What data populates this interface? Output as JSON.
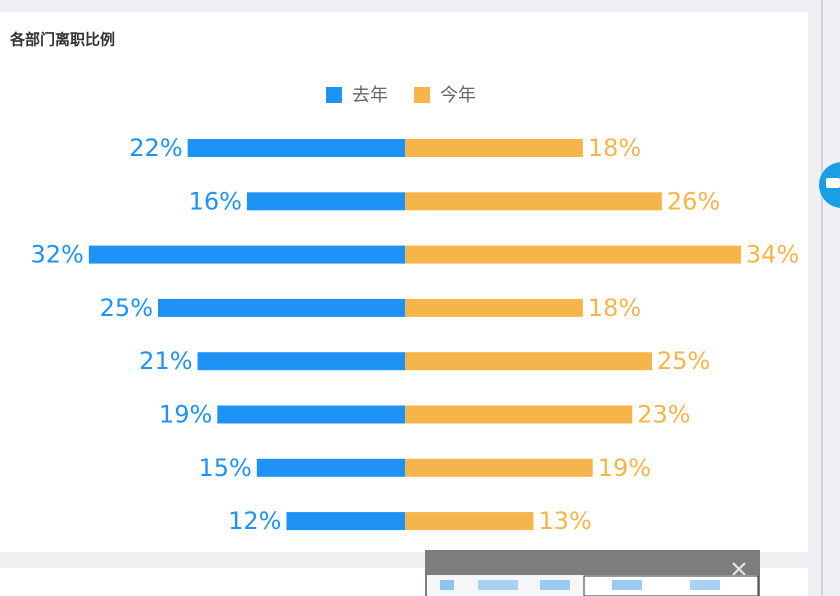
{
  "chart_data": {
    "type": "butterfly",
    "title": "各部门离职比例",
    "series": [
      {
        "name": "去年",
        "color": "#1e93f5",
        "values": [
          22,
          16,
          32,
          25,
          21,
          19,
          15,
          12
        ],
        "value_labels": [
          "22%",
          "16%",
          "32%",
          "25%",
          "21%",
          "19%",
          "15%",
          "12%"
        ]
      },
      {
        "name": "今年",
        "color": "#f5b54a",
        "values": [
          18,
          26,
          34,
          18,
          25,
          23,
          19,
          13
        ],
        "value_labels": [
          "18%",
          "26%",
          "34%",
          "18%",
          "25%",
          "23%",
          "19%",
          "13%"
        ]
      }
    ]
  }
}
